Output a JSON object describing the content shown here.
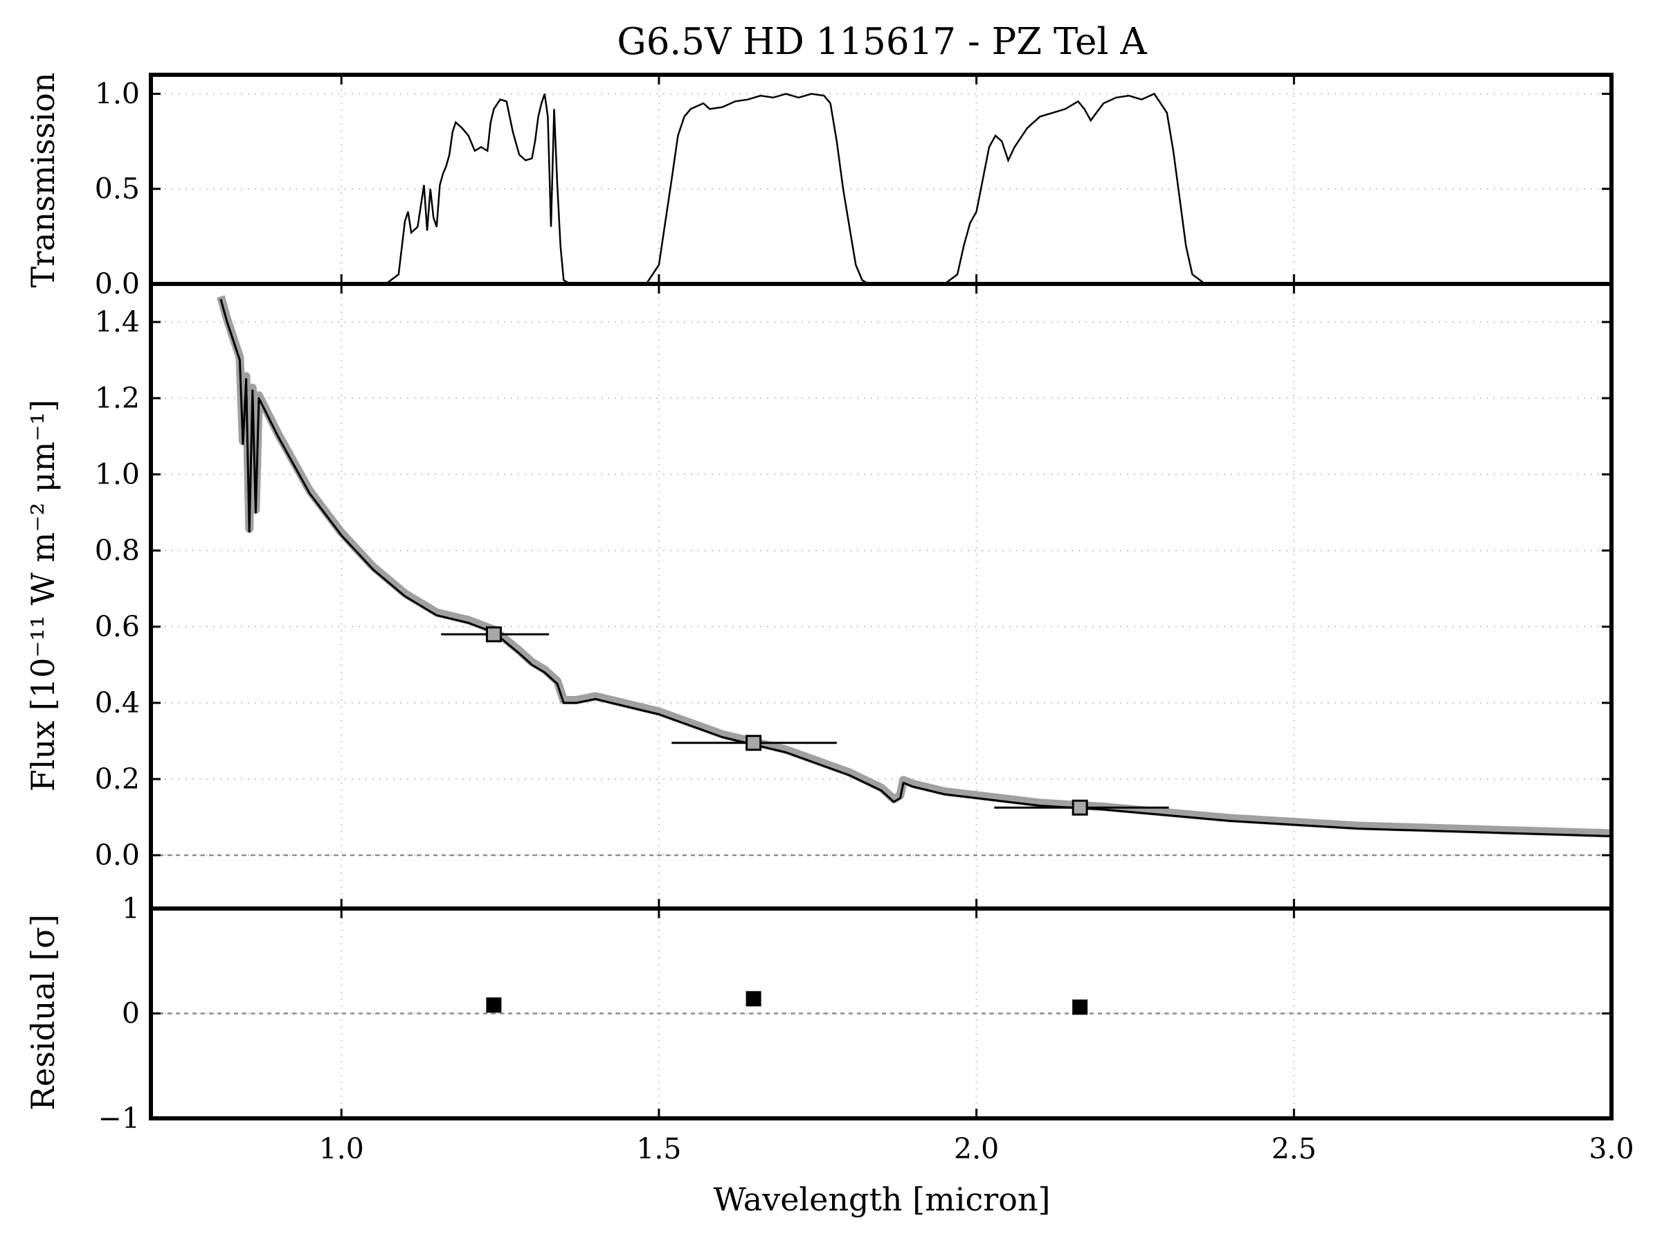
{
  "chart_data": {
    "type": "line",
    "title": "G6.5V HD 115617 - PZ Tel A",
    "xlabel": "Wavelength [micron]",
    "xlim": [
      0.7,
      3.0
    ],
    "x_ticks": [
      1.0,
      1.5,
      2.0,
      2.5,
      3.0
    ],
    "x_tick_labels": [
      "1.0",
      "1.5",
      "2.0",
      "2.5",
      "3.0"
    ],
    "panels": {
      "transmission": {
        "ylabel": "Transmission",
        "ylim": [
          0.0,
          1.1
        ],
        "y_ticks": [
          0.0,
          0.5,
          1.0
        ],
        "y_tick_labels": [
          "0.0",
          "0.5",
          "1.0"
        ],
        "filters": [
          {
            "color": "#000000",
            "points": [
              [
                1.07,
                0.0
              ],
              [
                1.09,
                0.05
              ],
              [
                1.1,
                0.33
              ],
              [
                1.105,
                0.38
              ],
              [
                1.11,
                0.27
              ],
              [
                1.12,
                0.3
              ],
              [
                1.13,
                0.52
              ],
              [
                1.135,
                0.28
              ],
              [
                1.14,
                0.5
              ],
              [
                1.145,
                0.35
              ],
              [
                1.15,
                0.3
              ],
              [
                1.155,
                0.52
              ],
              [
                1.16,
                0.58
              ],
              [
                1.165,
                0.62
              ],
              [
                1.17,
                0.68
              ],
              [
                1.175,
                0.8
              ],
              [
                1.18,
                0.85
              ],
              [
                1.19,
                0.82
              ],
              [
                1.2,
                0.78
              ],
              [
                1.21,
                0.7
              ],
              [
                1.22,
                0.72
              ],
              [
                1.23,
                0.7
              ],
              [
                1.235,
                0.85
              ],
              [
                1.24,
                0.92
              ],
              [
                1.25,
                0.97
              ],
              [
                1.26,
                0.96
              ],
              [
                1.27,
                0.8
              ],
              [
                1.28,
                0.68
              ],
              [
                1.29,
                0.65
              ],
              [
                1.3,
                0.66
              ],
              [
                1.305,
                0.75
              ],
              [
                1.31,
                0.88
              ],
              [
                1.315,
                0.95
              ],
              [
                1.32,
                1.0
              ],
              [
                1.325,
                0.88
              ],
              [
                1.33,
                0.3
              ],
              [
                1.335,
                0.92
              ],
              [
                1.34,
                0.52
              ],
              [
                1.345,
                0.2
              ],
              [
                1.35,
                0.02
              ],
              [
                1.36,
                0.0
              ]
            ]
          },
          {
            "color": "#000000",
            "points": [
              [
                1.48,
                0.0
              ],
              [
                1.5,
                0.1
              ],
              [
                1.52,
                0.55
              ],
              [
                1.53,
                0.78
              ],
              [
                1.54,
                0.88
              ],
              [
                1.55,
                0.92
              ],
              [
                1.57,
                0.95
              ],
              [
                1.58,
                0.92
              ],
              [
                1.6,
                0.93
              ],
              [
                1.62,
                0.96
              ],
              [
                1.64,
                0.97
              ],
              [
                1.66,
                0.99
              ],
              [
                1.68,
                0.98
              ],
              [
                1.7,
                1.0
              ],
              [
                1.72,
                0.98
              ],
              [
                1.74,
                1.0
              ],
              [
                1.76,
                0.99
              ],
              [
                1.77,
                0.95
              ],
              [
                1.78,
                0.75
              ],
              [
                1.79,
                0.5
              ],
              [
                1.8,
                0.3
              ],
              [
                1.81,
                0.1
              ],
              [
                1.82,
                0.02
              ],
              [
                1.83,
                0.0
              ]
            ]
          },
          {
            "color": "#000000",
            "points": [
              [
                1.95,
                0.0
              ],
              [
                1.97,
                0.05
              ],
              [
                1.98,
                0.2
              ],
              [
                1.99,
                0.32
              ],
              [
                2.0,
                0.38
              ],
              [
                2.01,
                0.55
              ],
              [
                2.02,
                0.72
              ],
              [
                2.03,
                0.78
              ],
              [
                2.04,
                0.75
              ],
              [
                2.05,
                0.65
              ],
              [
                2.06,
                0.72
              ],
              [
                2.08,
                0.82
              ],
              [
                2.1,
                0.88
              ],
              [
                2.12,
                0.9
              ],
              [
                2.14,
                0.92
              ],
              [
                2.16,
                0.96
              ],
              [
                2.17,
                0.92
              ],
              [
                2.18,
                0.86
              ],
              [
                2.2,
                0.95
              ],
              [
                2.22,
                0.98
              ],
              [
                2.24,
                0.99
              ],
              [
                2.26,
                0.97
              ],
              [
                2.28,
                1.0
              ],
              [
                2.29,
                0.95
              ],
              [
                2.3,
                0.9
              ],
              [
                2.31,
                0.7
              ],
              [
                2.32,
                0.45
              ],
              [
                2.33,
                0.2
              ],
              [
                2.34,
                0.05
              ],
              [
                2.36,
                0.0
              ]
            ]
          }
        ]
      },
      "flux": {
        "ylabel": "Flux [10⁻¹¹ W m⁻² μm⁻¹]",
        "ylim": [
          -0.14,
          1.5
        ],
        "y_ticks": [
          0.0,
          0.2,
          0.4,
          0.6,
          0.8,
          1.0,
          1.2,
          1.4
        ],
        "y_tick_labels": [
          "0.0",
          "0.2",
          "0.4",
          "0.6",
          "0.8",
          "1.0",
          "1.2",
          "1.4"
        ],
        "series": [
          {
            "color": "#000000",
            "points": [
              [
                0.81,
                1.46
              ],
              [
                0.82,
                1.4
              ],
              [
                0.83,
                1.35
              ],
              [
                0.84,
                1.3
              ],
              [
                0.845,
                1.08
              ],
              [
                0.85,
                1.25
              ],
              [
                0.855,
                0.85
              ],
              [
                0.86,
                1.22
              ],
              [
                0.865,
                0.9
              ],
              [
                0.87,
                1.2
              ],
              [
                0.9,
                1.1
              ],
              [
                0.95,
                0.95
              ],
              [
                1.0,
                0.84
              ],
              [
                1.05,
                0.75
              ],
              [
                1.1,
                0.68
              ],
              [
                1.15,
                0.63
              ],
              [
                1.2,
                0.61
              ],
              [
                1.24,
                0.585
              ],
              [
                1.28,
                0.53
              ],
              [
                1.3,
                0.5
              ],
              [
                1.32,
                0.48
              ],
              [
                1.34,
                0.45
              ],
              [
                1.35,
                0.4
              ],
              [
                1.37,
                0.4
              ],
              [
                1.4,
                0.41
              ],
              [
                1.45,
                0.39
              ],
              [
                1.5,
                0.37
              ],
              [
                1.55,
                0.34
              ],
              [
                1.6,
                0.31
              ],
              [
                1.65,
                0.29
              ],
              [
                1.7,
                0.27
              ],
              [
                1.75,
                0.24
              ],
              [
                1.8,
                0.21
              ],
              [
                1.85,
                0.17
              ],
              [
                1.87,
                0.14
              ],
              [
                1.88,
                0.15
              ],
              [
                1.885,
                0.19
              ],
              [
                1.9,
                0.18
              ],
              [
                1.95,
                0.16
              ],
              [
                2.0,
                0.15
              ],
              [
                2.05,
                0.14
              ],
              [
                2.1,
                0.13
              ],
              [
                2.15,
                0.125
              ],
              [
                2.2,
                0.12
              ],
              [
                2.3,
                0.105
              ],
              [
                2.4,
                0.09
              ],
              [
                2.5,
                0.08
              ],
              [
                2.6,
                0.07
              ],
              [
                2.7,
                0.065
              ],
              [
                2.8,
                0.06
              ],
              [
                2.9,
                0.055
              ],
              [
                3.0,
                0.05
              ]
            ]
          }
        ],
        "photometry": [
          {
            "x": 1.24,
            "y": 0.58,
            "xerr": [
              1.157,
              1.327
            ]
          },
          {
            "x": 1.649,
            "y": 0.295,
            "xerr": [
              1.52,
              1.78
            ]
          },
          {
            "x": 2.163,
            "y": 0.125,
            "xerr": [
              2.028,
              2.303
            ]
          }
        ]
      },
      "residual": {
        "ylabel": "Residual [σ]",
        "ylim": [
          -1,
          1
        ],
        "y_ticks": [
          -1,
          0,
          1
        ],
        "y_tick_labels": [
          "−1",
          "0",
          "1"
        ],
        "points": [
          {
            "x": 1.24,
            "y": 0.08
          },
          {
            "x": 1.649,
            "y": 0.14
          },
          {
            "x": 2.163,
            "y": 0.06
          }
        ]
      }
    },
    "grid": true,
    "colors": {
      "line": "#000000",
      "model_band": "#a0a0a0",
      "photometry_fill": "#a8a8a8",
      "residual_marker": "#000000",
      "zero_line": "#8c8c8c"
    }
  }
}
